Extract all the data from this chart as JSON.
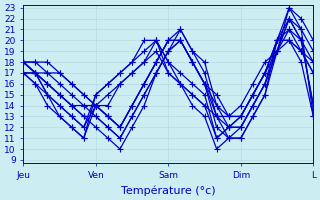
{
  "xlabel": "Température (°c)",
  "xlim": [
    0,
    96
  ],
  "ylim": [
    9,
    23
  ],
  "yticks": [
    9,
    10,
    11,
    12,
    13,
    14,
    15,
    16,
    17,
    18,
    19,
    20,
    21,
    22,
    23
  ],
  "xtick_positions": [
    0,
    24,
    48,
    72,
    96
  ],
  "xtick_labels": [
    "Jeu",
    "Ven",
    "Sam",
    "Dim",
    "L"
  ],
  "bg_color": "#cceef2",
  "grid_color": "#aad8de",
  "line_color": "#0000cc",
  "marker": "+",
  "markersize": 4,
  "linewidth": 0.9,
  "series_x": [
    [
      0,
      4,
      8,
      12,
      16,
      20,
      24,
      28,
      32,
      36,
      40,
      44,
      48,
      52,
      56,
      60,
      64,
      68,
      72,
      76,
      80,
      84,
      88,
      92,
      96
    ],
    [
      0,
      4,
      8,
      12,
      16,
      20,
      24,
      28,
      32,
      36,
      40,
      44,
      48,
      52,
      56,
      60,
      64,
      68,
      72,
      76,
      80,
      84,
      88,
      92,
      96
    ],
    [
      0,
      4,
      8,
      12,
      16,
      20,
      24,
      28,
      32,
      36,
      40,
      44,
      48,
      52,
      56,
      60,
      64,
      68,
      72,
      76,
      80,
      84,
      88,
      92,
      96
    ],
    [
      0,
      4,
      8,
      12,
      16,
      20,
      24,
      28,
      32,
      36,
      40,
      44,
      48,
      52,
      56,
      60,
      64,
      68,
      72,
      76,
      80,
      84,
      88,
      92,
      96
    ],
    [
      0,
      4,
      8,
      12,
      16,
      20,
      24,
      28,
      32,
      36,
      40,
      44,
      48,
      52,
      56,
      60,
      64,
      68,
      72,
      76,
      80,
      84,
      88,
      92,
      96
    ],
    [
      0,
      4,
      8,
      12,
      16,
      20,
      24,
      28,
      32,
      36,
      40,
      44,
      48,
      52,
      56,
      60,
      64,
      68,
      72,
      76,
      80,
      84,
      88,
      92,
      96
    ],
    [
      0,
      4,
      8,
      12,
      16,
      20,
      24,
      28,
      32,
      36,
      40,
      44,
      48,
      52,
      56,
      60,
      64,
      68,
      72,
      76,
      80,
      84,
      88,
      92,
      96
    ],
    [
      0,
      4,
      8,
      12,
      16,
      20,
      24,
      28,
      32,
      36,
      40,
      44,
      48,
      52,
      56,
      60,
      64,
      68,
      72,
      76,
      80,
      84,
      88,
      92,
      96
    ],
    [
      0,
      4,
      8,
      12,
      16,
      20,
      24,
      28,
      32,
      36,
      40,
      44,
      48,
      52,
      56,
      60,
      64,
      68,
      72,
      76,
      80,
      84,
      88,
      92,
      96
    ],
    [
      0,
      4,
      8,
      12,
      16,
      20,
      24,
      28,
      32,
      36,
      40,
      44,
      48,
      52,
      56,
      60,
      64,
      68,
      72,
      76,
      80,
      84,
      88,
      92,
      96
    ]
  ],
  "series_y": [
    [
      17,
      17,
      17,
      17,
      16,
      15,
      14,
      13,
      12,
      14,
      16,
      18,
      20,
      21,
      19,
      18,
      14,
      13,
      13,
      15,
      17,
      20,
      20,
      19,
      17
    ],
    [
      18,
      18,
      18,
      17,
      16,
      15,
      14,
      13,
      12,
      14,
      16,
      18,
      20,
      20,
      18,
      16,
      13,
      12,
      12,
      14,
      16,
      20,
      21,
      20,
      18
    ],
    [
      18,
      18,
      17,
      16,
      15,
      14,
      13,
      12,
      11,
      13,
      15,
      17,
      19,
      20,
      18,
      16,
      12,
      11,
      11,
      13,
      15,
      19,
      22,
      21,
      19
    ],
    [
      17,
      17,
      16,
      15,
      14,
      13,
      12,
      11,
      10,
      12,
      14,
      17,
      19,
      21,
      19,
      17,
      13,
      11,
      11,
      13,
      15,
      20,
      23,
      22,
      20
    ],
    [
      18,
      17,
      16,
      15,
      14,
      13,
      13,
      12,
      11,
      13,
      15,
      17,
      19,
      20,
      18,
      16,
      14,
      12,
      12,
      14,
      16,
      19,
      21,
      19,
      17
    ],
    [
      18,
      17,
      16,
      15,
      14,
      14,
      14,
      13,
      12,
      14,
      16,
      18,
      20,
      20,
      18,
      16,
      15,
      13,
      13,
      15,
      17,
      20,
      20,
      19,
      18
    ],
    [
      17,
      16,
      15,
      14,
      13,
      12,
      14,
      15,
      16,
      17,
      18,
      19,
      17,
      16,
      15,
      14,
      13,
      13,
      14,
      16,
      18,
      19,
      20,
      18,
      13
    ],
    [
      18,
      17,
      15,
      14,
      13,
      12,
      15,
      16,
      17,
      18,
      19,
      20,
      18,
      17,
      16,
      15,
      11,
      12,
      13,
      15,
      17,
      19,
      22,
      20,
      14
    ],
    [
      17,
      16,
      14,
      13,
      12,
      11,
      14,
      14,
      16,
      17,
      18,
      20,
      17,
      16,
      14,
      13,
      10,
      11,
      12,
      14,
      16,
      19,
      23,
      21,
      13
    ],
    [
      18,
      17,
      15,
      13,
      12,
      11,
      15,
      16,
      17,
      18,
      20,
      20,
      18,
      16,
      15,
      14,
      11,
      12,
      13,
      15,
      17,
      20,
      22,
      20,
      14
    ]
  ]
}
